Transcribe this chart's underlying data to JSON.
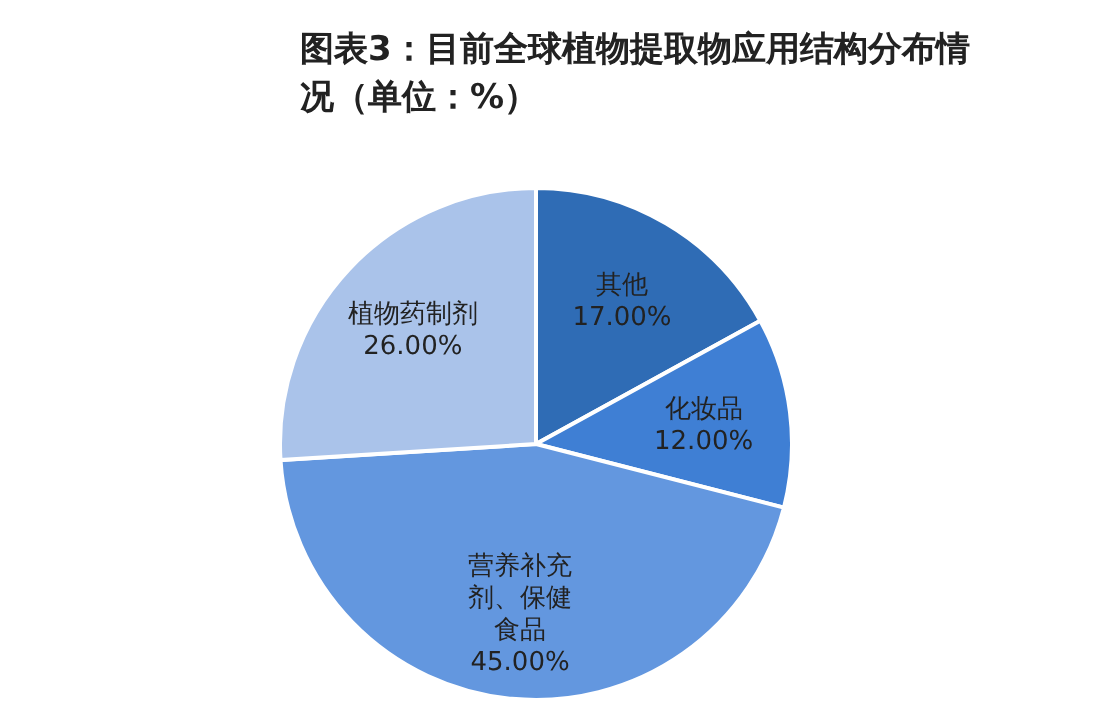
{
  "chart_data": {
    "type": "pie",
    "title": "图表3：目前全球植物提取物应用结构分布情况（单位：%）",
    "categories": [
      "其他",
      "化妆品",
      "营养补充剂、保健食品",
      "植物药制剂"
    ],
    "values": [
      17,
      12,
      45,
      26
    ],
    "colors": [
      "#2f6cb5",
      "#3f7fd4",
      "#6397df",
      "#aac3ea"
    ],
    "value_labels": [
      "17.00%",
      "12.00%",
      "45.00%",
      "26.00%"
    ]
  }
}
